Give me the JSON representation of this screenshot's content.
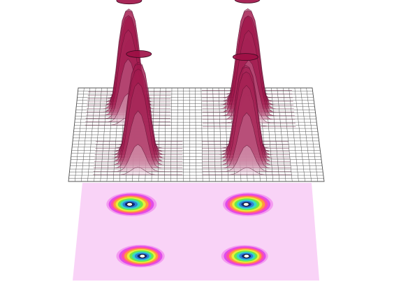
{
  "chart_data": {
    "type": "surface3d",
    "title": "",
    "xlabel": "",
    "ylabel": "",
    "zlabel": "",
    "grid": true,
    "projected_contour": true,
    "x_range": [
      0,
      1
    ],
    "y_range": [
      0,
      1
    ],
    "z_range": [
      0,
      1
    ],
    "peaks": [
      {
        "id": "back-left",
        "x": 0.22,
        "y": 0.78,
        "height": 1.0,
        "width": 0.055
      },
      {
        "id": "front-left",
        "x": 0.27,
        "y": 0.25,
        "height": 0.96,
        "width": 0.055
      },
      {
        "id": "back-right",
        "x": 0.72,
        "y": 0.78,
        "height": 1.0,
        "width": 0.06
      },
      {
        "id": "front-right",
        "x": 0.7,
        "y": 0.25,
        "height": 0.93,
        "width": 0.055
      }
    ],
    "colors": {
      "surface_low": "#f4e6ef",
      "surface_high": "#9e0f45",
      "mesh_line": "#555555",
      "contour_floor": "#f9d3f7",
      "contour_levels": [
        "#f49bf0",
        "#e04ce9",
        "#ff4fa6",
        "#ff9d3a",
        "#e8f03a",
        "#6fe84a",
        "#38d6c9",
        "#2e7fd6",
        "#102a7a",
        "#ffffff"
      ]
    }
  }
}
